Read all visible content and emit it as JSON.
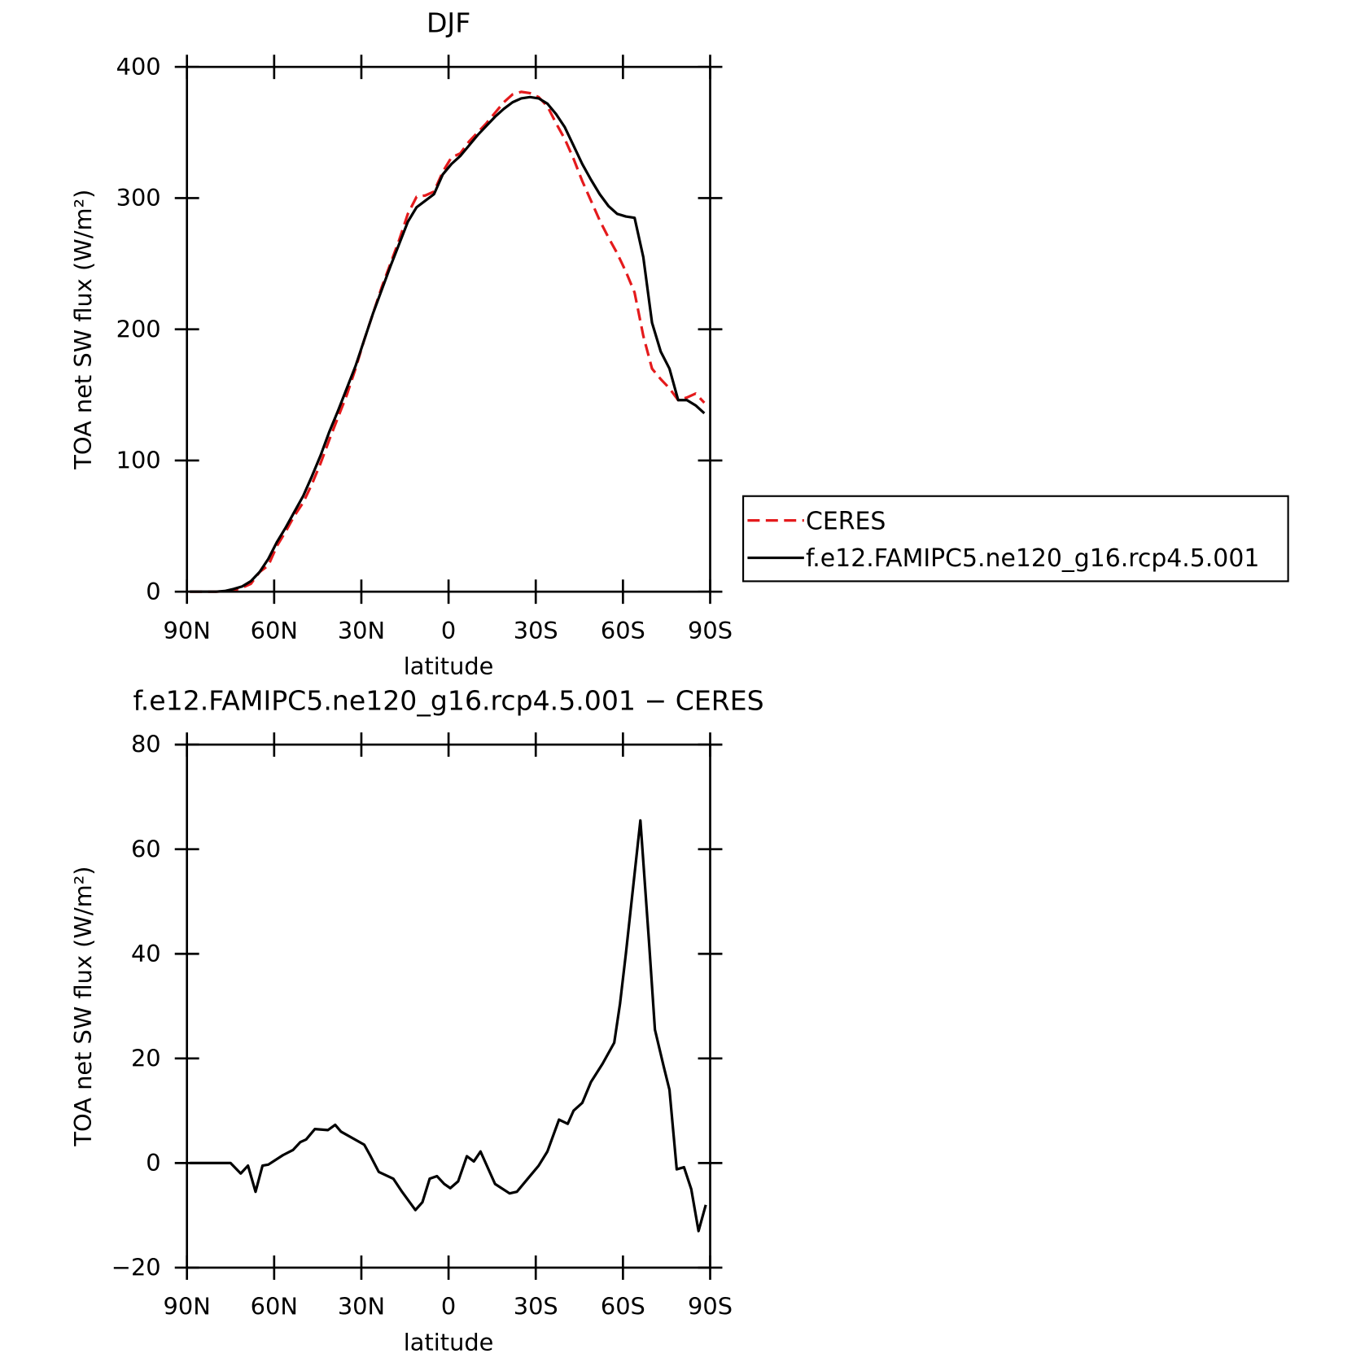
{
  "chart_data": [
    {
      "type": "line",
      "title": "DJF",
      "xlabel": "latitude",
      "ylabel": "TOA net SW flux (W/m²)",
      "xlim": [
        90,
        -90
      ],
      "xticks": [
        {
          "value": 90,
          "label": "90N"
        },
        {
          "value": 60,
          "label": "60N"
        },
        {
          "value": 30,
          "label": "30N"
        },
        0,
        {
          "value": -30,
          "label": "30S"
        },
        {
          "value": -60,
          "label": "60S"
        },
        {
          "value": -90,
          "label": "90S"
        }
      ],
      "ylim": [
        0,
        400
      ],
      "yticks": [
        0,
        100,
        200,
        300,
        400
      ],
      "legend": "right",
      "x": [
        89,
        86,
        83,
        80,
        77,
        74,
        71,
        68,
        65,
        62,
        59,
        56,
        53,
        50,
        47,
        44,
        41,
        38,
        35,
        32,
        29,
        26,
        23,
        20,
        17,
        14,
        11,
        8,
        5,
        2,
        -1,
        -4,
        -7,
        -10,
        -13,
        -16,
        -19,
        -22,
        -25,
        -28,
        -31,
        -34,
        -37,
        -40,
        -43,
        -46,
        -49,
        -52,
        -55,
        -58,
        -61,
        -64,
        -67,
        -70,
        -73,
        -76,
        -79,
        -82,
        -85,
        -88
      ],
      "series": [
        {
          "name": "CERES",
          "color": "#e41a1c",
          "dashed": true,
          "values": [
            0,
            0,
            0,
            0,
            0.3,
            1,
            3,
            6,
            15,
            20,
            35,
            46,
            58,
            68,
            82,
            98,
            116,
            133,
            150,
            170,
            192,
            212,
            232,
            250,
            268,
            288,
            301,
            302,
            305,
            320,
            331,
            334,
            343,
            350,
            357,
            365,
            373,
            379,
            381,
            380,
            377,
            370,
            357,
            345,
            330,
            313,
            298,
            283,
            270,
            258,
            244,
            228,
            195,
            170,
            162,
            155,
            146,
            148,
            151,
            144
          ]
        },
        {
          "name": "f.e12.FAMIPC5.ne120_g16.rcp4.5.001",
          "color": "#000000",
          "dashed": false,
          "values": [
            0,
            0,
            0,
            0,
            0.5,
            2,
            4,
            8,
            15,
            25,
            38,
            49,
            61,
            73,
            88,
            104,
            122,
            138,
            155,
            172,
            192,
            212,
            230,
            248,
            265,
            282,
            293,
            298,
            303,
            318,
            326,
            332,
            340,
            348,
            355,
            362,
            368,
            373,
            376,
            377,
            376,
            372,
            364,
            354,
            340,
            326,
            314,
            303,
            294,
            288,
            286,
            285,
            255,
            205,
            183,
            170,
            146,
            146,
            142,
            136
          ]
        }
      ]
    },
    {
      "type": "line",
      "title": "f.e12.FAMIPC5.ne120_g16.rcp4.5.001 − CERES",
      "xlabel": "latitude",
      "ylabel": "TOA net SW flux (W/m²)",
      "xlim": [
        90,
        -90
      ],
      "xticks": [
        {
          "value": 90,
          "label": "90N"
        },
        {
          "value": 60,
          "label": "60N"
        },
        {
          "value": 30,
          "label": "30N"
        },
        0,
        {
          "value": -30,
          "label": "30S"
        },
        {
          "value": -60,
          "label": "60S"
        },
        {
          "value": -90,
          "label": "90S"
        }
      ],
      "ylim": [
        -20,
        80
      ],
      "yticks": [
        {
          "value": -20,
          "label": "−20"
        },
        0,
        20,
        40,
        60,
        80
      ],
      "x": [
        89,
        80,
        75,
        71.5,
        69,
        66.4,
        64,
        62,
        57,
        53.5,
        51,
        49,
        46,
        41.5,
        39,
        37,
        29,
        27,
        24,
        19,
        16,
        11.4,
        9,
        6.5,
        4,
        1.5,
        -0.6,
        -3.3,
        -6.3,
        -8.7,
        -11,
        -16,
        -21,
        -23.5,
        -28,
        -31,
        -34,
        -38,
        -41,
        -43,
        -46,
        -49,
        -53,
        -57,
        -59,
        -61,
        -66,
        -69,
        -71,
        -74,
        -76,
        -78.5,
        -81,
        -83.5,
        -86,
        -88.5
      ],
      "series": [
        {
          "name": "f.e12.FAMIPC5.ne120_g16.rcp4.5.001 − CERES",
          "color": "#000000",
          "dashed": false,
          "values": [
            0,
            0,
            0,
            -2,
            -0.5,
            -5.5,
            -0.5,
            -0.3,
            1.5,
            2.5,
            4,
            4.5,
            6.5,
            6.3,
            7.3,
            6,
            3.5,
            1.5,
            -1.7,
            -3,
            -5.5,
            -9,
            -7.5,
            -3,
            -2.5,
            -4,
            -4.8,
            -3.5,
            1.3,
            0.3,
            2.2,
            -4,
            -5.8,
            -5.5,
            -2.5,
            -0.5,
            2.2,
            8.3,
            7.5,
            10,
            11.5,
            15.5,
            19,
            23,
            30.5,
            40,
            65.5,
            42,
            25.5,
            18.5,
            14,
            -1.2,
            -0.8,
            -5,
            -13,
            -8
          ]
        }
      ]
    }
  ]
}
